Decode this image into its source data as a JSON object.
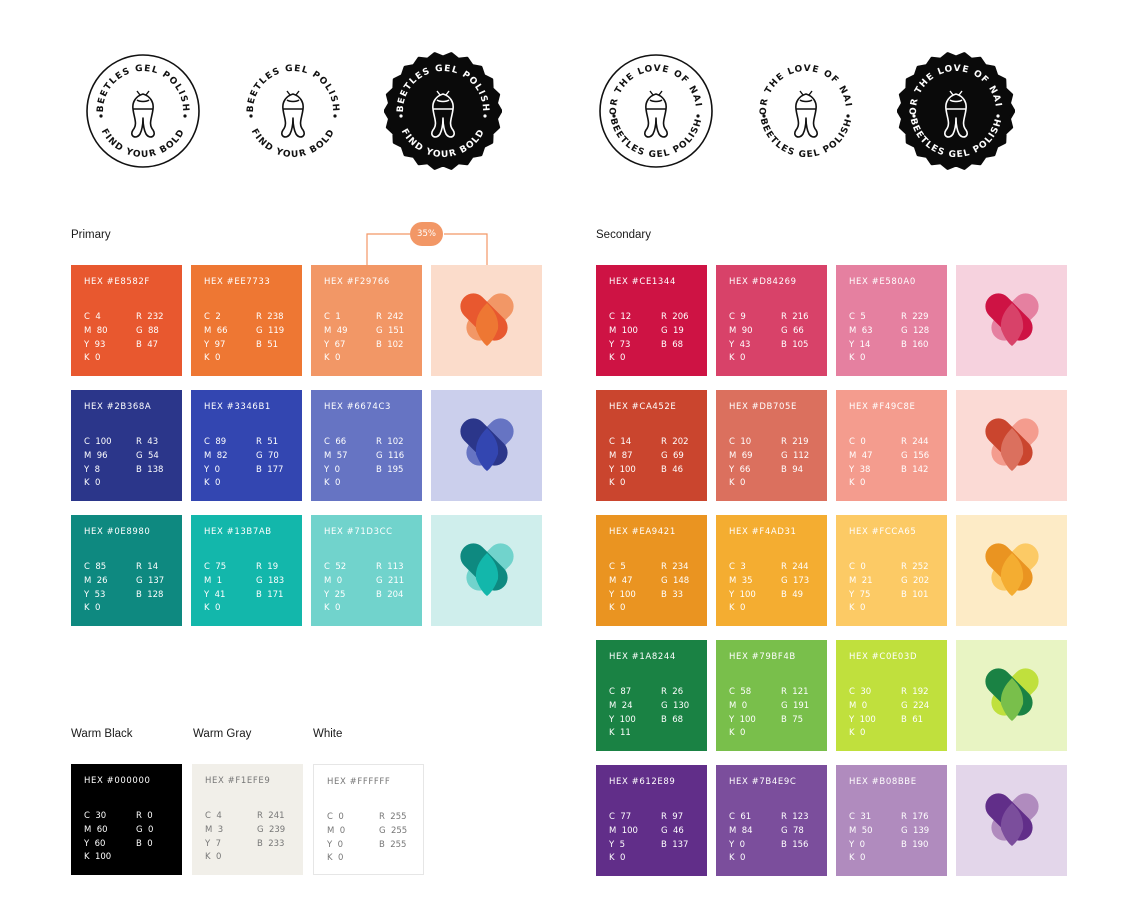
{
  "badges": [
    {
      "top": "BEETLES GEL POLISH",
      "bottom": "FIND YOUR BOLD",
      "style": "outline"
    },
    {
      "top": "BEETLES GEL POLISH",
      "bottom": "FIND YOUR BOLD",
      "style": "plain"
    },
    {
      "top": "BEETLES GEL POLISH",
      "bottom": "FIND YOUR BOLD",
      "style": "scalloped"
    },
    {
      "top": "FOR THE LOVE OF NAILS",
      "bottom": "BEETLES GEL POLISH",
      "style": "outline"
    },
    {
      "top": "FOR THE LOVE OF NAILS",
      "bottom": "BEETLES GEL POLISH",
      "style": "plain"
    },
    {
      "top": "FOR THE LOVE OF NAILS",
      "bottom": "BEETLES GEL POLISH",
      "style": "scalloped"
    }
  ],
  "labels": {
    "primary": "Primary",
    "secondary": "Secondary",
    "warm_black": "Warm Black",
    "warm_gray": "Warm Gray",
    "white": "White",
    "percent": "35%"
  },
  "primary_rows": [
    {
      "swatches": [
        {
          "hex": "HEX #E8582F",
          "color": "#E8582F",
          "c": "C  4",
          "m": "M  80",
          "y": "Y  93",
          "k": "K  0",
          "r": "R  232",
          "g": "G  88",
          "b": "B  47"
        },
        {
          "hex": "HEX #EE7733",
          "color": "#EE7733",
          "c": "C  2",
          "m": "M  66",
          "y": "Y  97",
          "k": "K  0",
          "r": "R  238",
          "g": "G  119",
          "b": "B  51"
        },
        {
          "hex": "HEX #F29766",
          "color": "#F29766",
          "c": "C  1",
          "m": "M  49",
          "y": "Y  67",
          "k": "K  0",
          "r": "R  242",
          "g": "G  151",
          "b": "B  102"
        }
      ],
      "tile": {
        "bg": "#FBDCCB",
        "left": "#E8582F",
        "right": "#F29766",
        "overlap": "#EE7733"
      }
    },
    {
      "swatches": [
        {
          "hex": "HEX #2B368A",
          "color": "#2B368A",
          "c": "C  100",
          "m": "M  96",
          "y": "Y  8",
          "k": "K  0",
          "r": "R  43",
          "g": "G  54",
          "b": "B  138"
        },
        {
          "hex": "HEX #3346B1",
          "color": "#3346B1",
          "c": "C  89",
          "m": "M  82",
          "y": "Y  0",
          "k": "K  0",
          "r": "R  51",
          "g": "G  70",
          "b": "B  177"
        },
        {
          "hex": "HEX #6674C3",
          "color": "#6674C3",
          "c": "C  66",
          "m": "M  57",
          "y": "Y  0",
          "k": "K  0",
          "r": "R  102",
          "g": "G  116",
          "b": "B  195"
        }
      ],
      "tile": {
        "bg": "#CBCFEC",
        "left": "#2B368A",
        "right": "#6674C3",
        "overlap": "#3346B1"
      }
    },
    {
      "swatches": [
        {
          "hex": "HEX #0E8980",
          "color": "#0E8980",
          "c": "C  85",
          "m": "M  26",
          "y": "Y  53",
          "k": "K  0",
          "r": "R  14",
          "g": "G  137",
          "b": "B  128"
        },
        {
          "hex": "HEX #13B7AB",
          "color": "#13B7AB",
          "c": "C  75",
          "m": "M  1",
          "y": "Y  41",
          "k": "K  0",
          "r": "R  19",
          "g": "G  183",
          "b": "B  171"
        },
        {
          "hex": "HEX #71D3CC",
          "color": "#71D3CC",
          "c": "C  52",
          "m": "M  0",
          "y": "Y  25",
          "k": "K  0",
          "r": "R  113",
          "g": "G  211",
          "b": "B  204"
        }
      ],
      "tile": {
        "bg": "#CFEEEC",
        "left": "#0E8980",
        "right": "#71D3CC",
        "overlap": "#13B7AB"
      }
    }
  ],
  "secondary_rows": [
    {
      "swatches": [
        {
          "hex": "HEX #CE1344",
          "color": "#CE1344",
          "c": "C  12",
          "m": "M  100",
          "y": "Y  73",
          "k": "K  0",
          "r": "R  206",
          "g": "G  19",
          "b": "B  68"
        },
        {
          "hex": "HEX #D84269",
          "color": "#D84269",
          "c": "C  9",
          "m": "M  90",
          "y": "Y  43",
          "k": "K  0",
          "r": "R  216",
          "g": "G  66",
          "b": "B  105"
        },
        {
          "hex": "HEX #E580A0",
          "color": "#E580A0",
          "c": "C  5",
          "m": "M  63",
          "y": "Y  14",
          "k": "K  0",
          "r": "R  229",
          "g": "G  128",
          "b": "B  160"
        }
      ],
      "tile": {
        "bg": "#F6D2DE",
        "left": "#CE1344",
        "right": "#E580A0",
        "overlap": "#D84269"
      }
    },
    {
      "swatches": [
        {
          "hex": "HEX #CA452E",
          "color": "#CA452E",
          "c": "C  14",
          "m": "M  87",
          "y": "Y  100",
          "k": "K  0",
          "r": "R  202",
          "g": "G  69",
          "b": "B  46"
        },
        {
          "hex": "HEX #DB705E",
          "color": "#DB705E",
          "c": "C  10",
          "m": "M  69",
          "y": "Y  66",
          "k": "K  0",
          "r": "R  219",
          "g": "G  112",
          "b": "B  94"
        },
        {
          "hex": "HEX #F49C8E",
          "color": "#F49C8E",
          "c": "C  0",
          "m": "M  47",
          "y": "Y  38",
          "k": "K  0",
          "r": "R  244",
          "g": "G  156",
          "b": "B  142"
        }
      ],
      "tile": {
        "bg": "#FBDAD5",
        "left": "#CA452E",
        "right": "#F49C8E",
        "overlap": "#DB705E"
      }
    },
    {
      "swatches": [
        {
          "hex": "HEX #EA9421",
          "color": "#EA9421",
          "c": "C  5",
          "m": "M  47",
          "y": "Y  100",
          "k": "K  0",
          "r": "R  234",
          "g": "G  148",
          "b": "B  33"
        },
        {
          "hex": "HEX #F4AD31",
          "color": "#F4AD31",
          "c": "C  3",
          "m": "M  35",
          "y": "Y  100",
          "k": "K  0",
          "r": "R  244",
          "g": "G  173",
          "b": "B  49"
        },
        {
          "hex": "HEX #FCCA65",
          "color": "#FCCA65",
          "c": "C  0",
          "m": "M  21",
          "y": "Y  75",
          "k": "K  0",
          "r": "R  252",
          "g": "G  202",
          "b": "B  101"
        }
      ],
      "tile": {
        "bg": "#FDEBC6",
        "left": "#EA9421",
        "right": "#FCCA65",
        "overlap": "#F4AD31"
      }
    },
    {
      "swatches": [
        {
          "hex": "HEX #1A8244",
          "color": "#1A8244",
          "c": "C  87",
          "m": "M  24",
          "y": "Y  100",
          "k": "K  11",
          "r": "R  26",
          "g": "G  130",
          "b": "B  68"
        },
        {
          "hex": "HEX #79BF4B",
          "color": "#79BF4B",
          "c": "C  58",
          "m": "M  0",
          "y": "Y  100",
          "k": "K  0",
          "r": "R  121",
          "g": "G  191",
          "b": "B  75"
        },
        {
          "hex": "HEX #C0E03D",
          "color": "#C0E03D",
          "c": "C  30",
          "m": "M  0",
          "y": "Y  100",
          "k": "K  0",
          "r": "R  192",
          "g": "G  224",
          "b": "B  61"
        }
      ],
      "tile": {
        "bg": "#E8F4C3",
        "left": "#1A8244",
        "right": "#C0E03D",
        "overlap": "#79BF4B"
      }
    },
    {
      "swatches": [
        {
          "hex": "HEX #612E89",
          "color": "#612E89",
          "c": "C  77",
          "m": "M  100",
          "y": "Y  5",
          "k": "K  0",
          "r": "R  97",
          "g": "G  46",
          "b": "B  137"
        },
        {
          "hex": "HEX #7B4E9C",
          "color": "#7B4E9C",
          "c": "C  61",
          "m": "M  84",
          "y": "Y  0",
          "k": "K  0",
          "r": "R  123",
          "g": "G  78",
          "b": "B  156"
        },
        {
          "hex": "HEX #B08BBE",
          "color": "#B08BBE",
          "c": "C  31",
          "m": "M  50",
          "y": "Y  0",
          "k": "K  0",
          "r": "R  176",
          "g": "G  139",
          "b": "B  190"
        }
      ],
      "tile": {
        "bg": "#E3D6EA",
        "left": "#612E89",
        "right": "#B08BBE",
        "overlap": "#7B4E9C"
      }
    }
  ],
  "neutrals": [
    {
      "hex": "HEX #000000",
      "color": "#000000",
      "text": "light",
      "c": "C  30",
      "m": "M  60",
      "y": "Y  60",
      "k": "K  100",
      "r": "R  0",
      "g": "G  0",
      "b": "B  0"
    },
    {
      "hex": "HEX #F1EFE9",
      "color": "#F1EFE9",
      "text": "dark",
      "c": "C  4",
      "m": "M  3",
      "y": "Y  7",
      "k": "K  0",
      "r": "R  241",
      "g": "G  239",
      "b": "B  233"
    },
    {
      "hex": "HEX #FFFFFF",
      "color": "#FFFFFF",
      "text": "dark",
      "c": "C  0",
      "m": "M  0",
      "y": "Y  0",
      "k": "K  0",
      "r": "R  255",
      "g": "G  255",
      "b": "B  255"
    }
  ]
}
